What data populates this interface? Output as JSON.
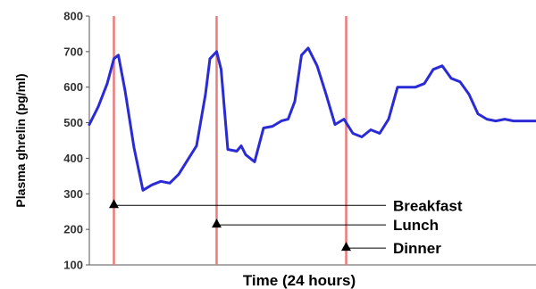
{
  "chart_data": {
    "type": "line",
    "xlabel": "Time (24 hours)",
    "ylabel": "Plasma ghrelin (pg/ml)",
    "ylim": [
      100,
      800
    ],
    "yticks": [
      "800",
      "700",
      "600",
      "500",
      "400",
      "300",
      "200",
      "100"
    ],
    "x": [
      0.0,
      0.02,
      0.04,
      0.055,
      0.065,
      0.08,
      0.1,
      0.12,
      0.14,
      0.16,
      0.18,
      0.2,
      0.22,
      0.24,
      0.26,
      0.27,
      0.285,
      0.295,
      0.31,
      0.33,
      0.34,
      0.35,
      0.37,
      0.39,
      0.41,
      0.43,
      0.445,
      0.46,
      0.475,
      0.49,
      0.51,
      0.53,
      0.55,
      0.57,
      0.59,
      0.61,
      0.63,
      0.65,
      0.67,
      0.69,
      0.71,
      0.73,
      0.75,
      0.77,
      0.79,
      0.81,
      0.83,
      0.85,
      0.87,
      0.89,
      0.91,
      0.93,
      0.95,
      0.97,
      0.99,
      1.0
    ],
    "y": [
      495,
      545,
      610,
      680,
      690,
      590,
      430,
      310,
      325,
      335,
      330,
      355,
      395,
      435,
      580,
      680,
      700,
      650,
      425,
      420,
      435,
      410,
      390,
      485,
      490,
      505,
      510,
      560,
      690,
      710,
      660,
      580,
      495,
      510,
      470,
      460,
      480,
      470,
      510,
      600,
      600,
      600,
      610,
      650,
      660,
      625,
      615,
      580,
      525,
      510,
      505,
      510,
      505,
      505,
      505,
      505
    ],
    "series": [
      {
        "values_ref": "y",
        "color": "#2b2bd6"
      }
    ],
    "meal_x": [
      0.055,
      0.285,
      0.575
    ],
    "marker_x": [
      0.055,
      0.285,
      0.575
    ],
    "marker_y": [
      275,
      220,
      155
    ],
    "meals": [
      "Breakfast",
      "Lunch",
      "Dinner"
    ],
    "grid": false,
    "colors": {
      "line": "#2b2bd6",
      "meal_line": "#e87b7b",
      "axis": "#555555"
    }
  }
}
